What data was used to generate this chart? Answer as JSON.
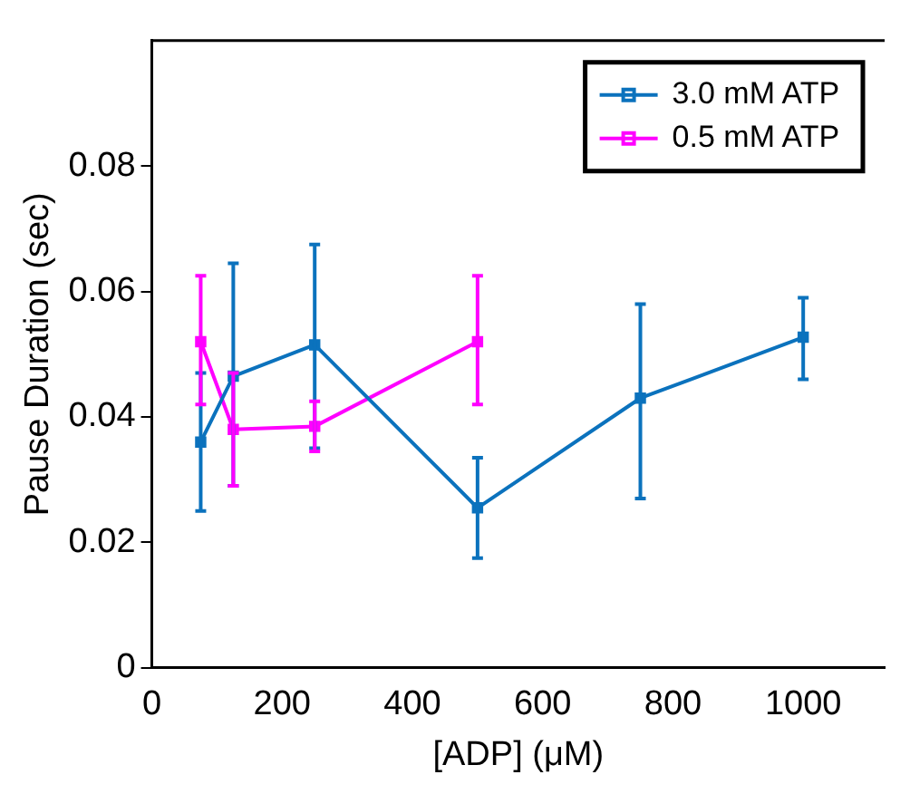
{
  "chart_data": {
    "type": "line",
    "xlabel": "[ADP] (μM)",
    "ylabel": "Pause Duration (sec)",
    "xlim": [
      0,
      1125
    ],
    "xticks": [
      0,
      200,
      400,
      600,
      800,
      1000
    ],
    "ylim": [
      0,
      0.1
    ],
    "yticks": [
      0,
      0.02,
      0.04,
      0.06,
      0.08
    ],
    "series": [
      {
        "name": "3.0 mM ATP",
        "color": "#0b72bd",
        "x": [
          75,
          125,
          250,
          500,
          750,
          1000
        ],
        "values": [
          0.036,
          0.0465,
          0.0515,
          0.0255,
          0.043,
          0.0527
        ],
        "errors": [
          [
            0.025,
            0.047
          ],
          [
            0.029,
            0.0645
          ],
          [
            0.035,
            0.0675
          ],
          [
            0.0175,
            0.0335
          ],
          [
            0.027,
            0.058
          ],
          [
            0.046,
            0.059
          ]
        ]
      },
      {
        "name": "0.5 mM ATP",
        "color": "#ff00ff",
        "x": [
          75,
          125,
          250,
          500
        ],
        "values": [
          0.052,
          0.038,
          0.0385,
          0.052
        ],
        "errors": [
          [
            0.042,
            0.0625
          ],
          [
            0.029,
            0.047
          ],
          [
            0.0345,
            0.0425
          ],
          [
            0.042,
            0.0625
          ]
        ]
      }
    ],
    "marker": "square",
    "legend": "top right",
    "grid": false
  }
}
